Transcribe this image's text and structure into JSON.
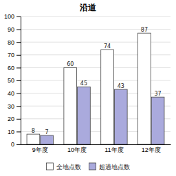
{
  "chart_data": {
    "type": "bar",
    "title": "沿道",
    "categories": [
      "9年度",
      "10年度",
      "11年度",
      "12年度"
    ],
    "series": [
      {
        "name": "全地点数",
        "color": "#ffffff",
        "values": [
          8,
          60,
          74,
          87
        ]
      },
      {
        "name": "超過地点数",
        "color": "#aaaadd",
        "values": [
          7,
          45,
          43,
          37
        ]
      }
    ],
    "ylim": [
      0,
      100
    ],
    "yticks": [
      0,
      10,
      20,
      30,
      40,
      50,
      60,
      70,
      80,
      90,
      100
    ],
    "grid": true,
    "data_labels": true,
    "legend": "bottom"
  }
}
